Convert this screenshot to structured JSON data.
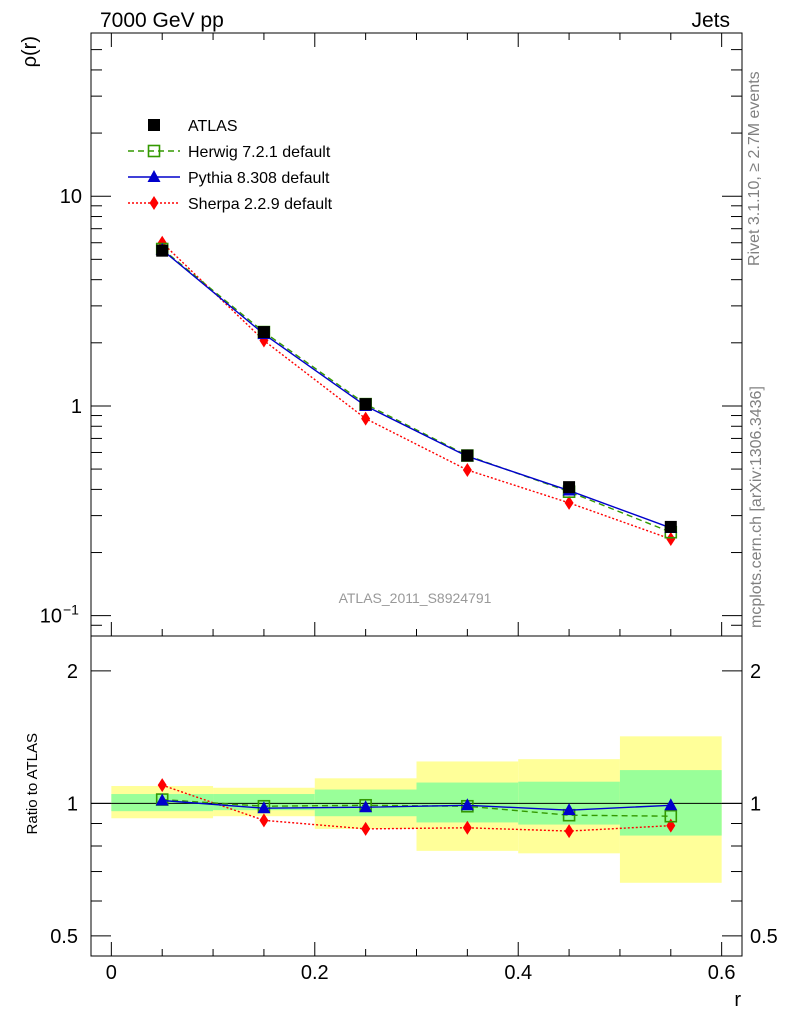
{
  "header": {
    "left": "7000 GeV pp",
    "right": "Jets"
  },
  "side": {
    "rivet": "Rivet 3.1.10, ≥ 2.7M events",
    "mcplots": "mcplots.cern.ch [arXiv:1306.3436]"
  },
  "analysis_label": "ATLAS_2011_S8924791",
  "chart_data": {
    "type": "line",
    "x": [
      0.05,
      0.15,
      0.25,
      0.35,
      0.45,
      0.55
    ],
    "xlabel": "r",
    "xlim": [
      -0.02,
      0.62
    ],
    "x_ticks": [
      {
        "value": 0,
        "label": "0"
      },
      {
        "value": 0.2,
        "label": "0.2"
      },
      {
        "value": 0.4,
        "label": "0.4"
      },
      {
        "value": 0.6,
        "label": "0.6"
      }
    ],
    "main": {
      "ylabel": "ρ(r)",
      "yscale": "log",
      "ylim": [
        0.08,
        60
      ],
      "y_ticks": [
        {
          "value": 0.1,
          "label": "10",
          "exp": "−1"
        },
        {
          "value": 1,
          "label": "1",
          "exp": ""
        },
        {
          "value": 10,
          "label": "10",
          "exp": ""
        }
      ]
    },
    "ratio": {
      "ylabel": "Ratio to ATLAS",
      "yscale": "log",
      "ylim": [
        0.45,
        2.4
      ],
      "y_ticks": [
        {
          "value": 0.5,
          "label": "0.5"
        },
        {
          "value": 1,
          "label": "1"
        },
        {
          "value": 2,
          "label": "2"
        }
      ],
      "bands": [
        {
          "x0": 0.0,
          "x1": 0.1,
          "inner": [
            0.96,
            1.05
          ],
          "outer": [
            0.925,
            1.095
          ]
        },
        {
          "x0": 0.1,
          "x1": 0.2,
          "inner": [
            0.965,
            1.05
          ],
          "outer": [
            0.935,
            1.085
          ]
        },
        {
          "x0": 0.2,
          "x1": 0.3,
          "inner": [
            0.935,
            1.075
          ],
          "outer": [
            0.875,
            1.14
          ]
        },
        {
          "x0": 0.3,
          "x1": 0.4,
          "inner": [
            0.905,
            1.115
          ],
          "outer": [
            0.78,
            1.245
          ]
        },
        {
          "x0": 0.4,
          "x1": 0.5,
          "inner": [
            0.895,
            1.12
          ],
          "outer": [
            0.77,
            1.26
          ]
        },
        {
          "x0": 0.5,
          "x1": 0.6,
          "inner": [
            0.845,
            1.19
          ],
          "outer": [
            0.66,
            1.42
          ]
        }
      ]
    },
    "series": [
      {
        "name": "ATLAS",
        "color": "#000000",
        "marker": "square-filled",
        "line": "none",
        "values": [
          5.5,
          2.25,
          1.02,
          0.58,
          0.41,
          0.265
        ],
        "ratio": [
          1.0,
          1.0,
          1.0,
          1.0,
          1.0,
          1.0
        ]
      },
      {
        "name": "Herwig 7.2.1 default",
        "color": "#339900",
        "marker": "square-open",
        "line": "dashed",
        "values": [
          5.6,
          2.25,
          1.02,
          0.58,
          0.39,
          0.25
        ],
        "ratio": [
          1.02,
          0.985,
          0.99,
          0.985,
          0.94,
          0.935
        ]
      },
      {
        "name": "Pythia 8.308 default",
        "color": "#0000cc",
        "marker": "triangle-filled",
        "line": "solid",
        "values": [
          5.55,
          2.2,
          1.0,
          0.575,
          0.395,
          0.262
        ],
        "ratio": [
          1.015,
          0.975,
          0.98,
          0.99,
          0.965,
          0.99
        ]
      },
      {
        "name": "Sherpa 2.2.9 default",
        "color": "#ff0000",
        "marker": "diamond-filled",
        "line": "dotted",
        "values": [
          6.0,
          2.05,
          0.87,
          0.495,
          0.345,
          0.232
        ],
        "ratio": [
          1.1,
          0.915,
          0.875,
          0.88,
          0.865,
          0.89
        ]
      }
    ]
  }
}
